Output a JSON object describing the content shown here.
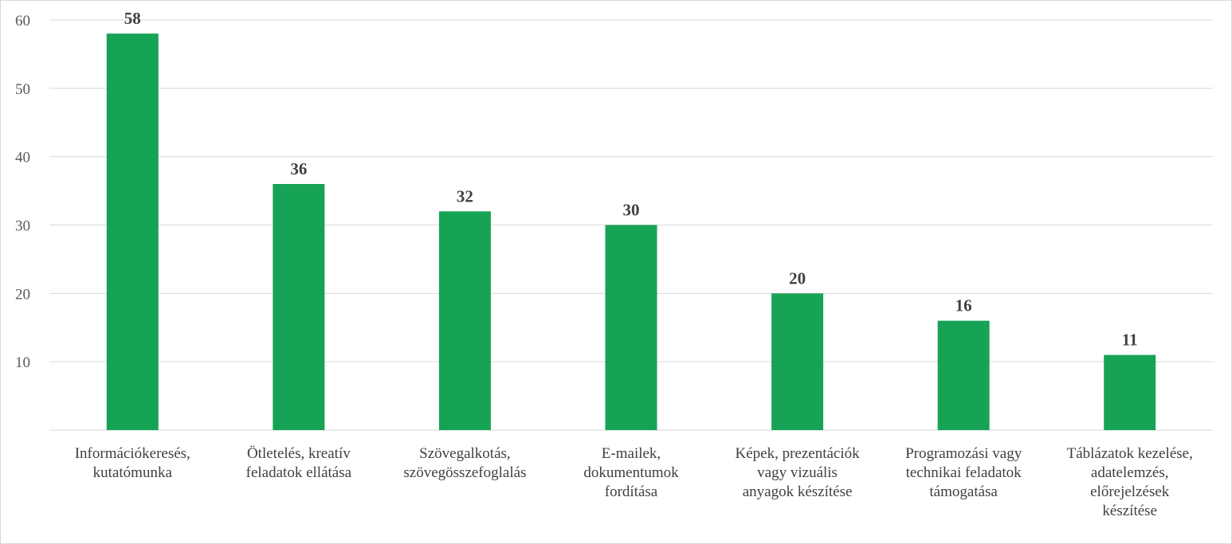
{
  "chart_data": {
    "type": "bar",
    "categories": [
      [
        "Információkeresés,",
        "kutatómunka"
      ],
      [
        "Ötletelés, kreatív",
        "feladatok ellátása"
      ],
      [
        "Szövegalkotás,",
        "szövegösszefoglalás"
      ],
      [
        "E-mailek,",
        "dokumentumok",
        "fordítása"
      ],
      [
        "Képek, prezentációk",
        "vagy vizuális",
        "anyagok készítése"
      ],
      [
        "Programozási vagy",
        "technikai feladatok",
        "támogatása"
      ],
      [
        "Táblázatok kezelése,",
        "adatelemzés,",
        "előrejelzések",
        "készítése"
      ]
    ],
    "values": [
      58,
      36,
      32,
      30,
      20,
      16,
      11
    ],
    "data_labels": [
      "58",
      "36",
      "32",
      "30",
      "20",
      "16",
      "11"
    ],
    "y_ticks": [
      "10",
      "20",
      "30",
      "40",
      "50",
      "60"
    ],
    "ylim": [
      0,
      60
    ],
    "grid": true,
    "colors": {
      "bar": "#17a355",
      "grid": "#d9d9d9"
    }
  }
}
